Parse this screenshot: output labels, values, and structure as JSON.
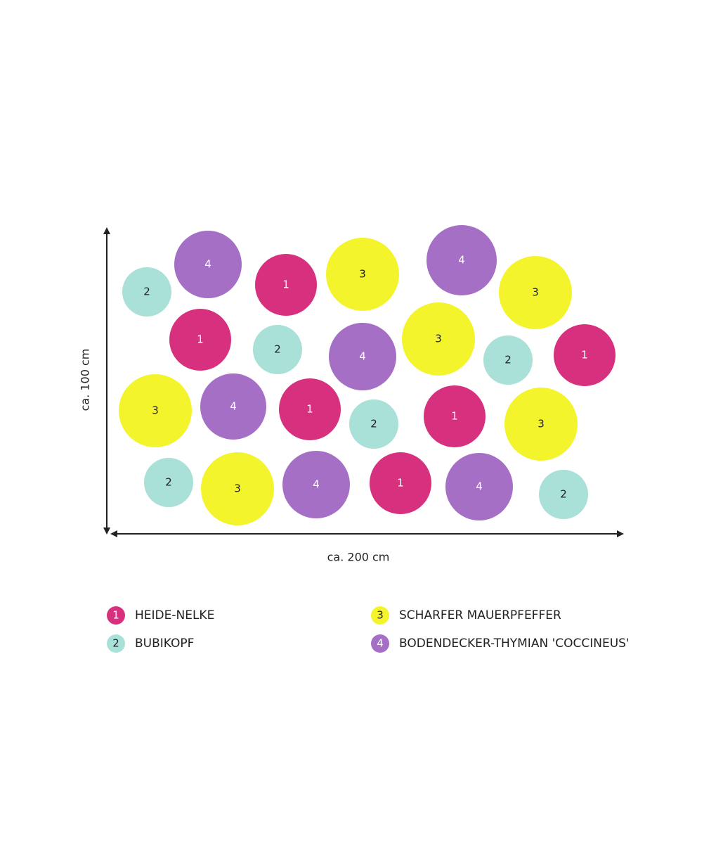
{
  "dimensions": {
    "height": "ca. 100 cm",
    "width": "ca. 200 cm"
  },
  "plants": [
    "4",
    "2",
    "1",
    "3",
    "4",
    "3",
    "1",
    "2",
    "4",
    "3",
    "2",
    "1",
    "3",
    "4",
    "1",
    "2",
    "1",
    "3",
    "2",
    "3",
    "4",
    "1",
    "4",
    "2"
  ],
  "legend": [
    {
      "number": "1",
      "name": "HEIDE-NELKE",
      "color": "#d6307f",
      "number_color": "#ffffff"
    },
    {
      "number": "2",
      "name": "BUBIKOPF",
      "color": "#a9e0d8",
      "number_color": "#222222"
    },
    {
      "number": "3",
      "name": "SCHARFER MAUERPFEFFER",
      "color": "#f4f42c",
      "number_color": "#222222"
    },
    {
      "number": "4",
      "name": "BODENDECKER-THYMIAN 'COCCINEUS'",
      "color": "#a56fc6",
      "number_color": "#ffffff"
    }
  ]
}
